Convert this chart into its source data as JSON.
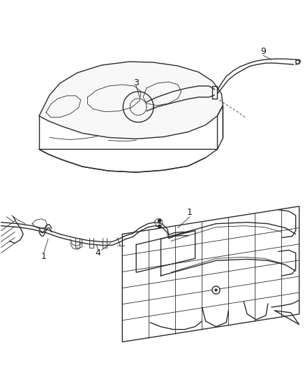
{
  "background_color": "#ffffff",
  "line_color": "#2a2a2a",
  "label_color": "#1a1a1a",
  "lw_main": 1.0,
  "lw_thin": 0.6,
  "lw_thick": 1.4,
  "figsize": [
    4.37,
    5.33
  ],
  "dpi": 100
}
